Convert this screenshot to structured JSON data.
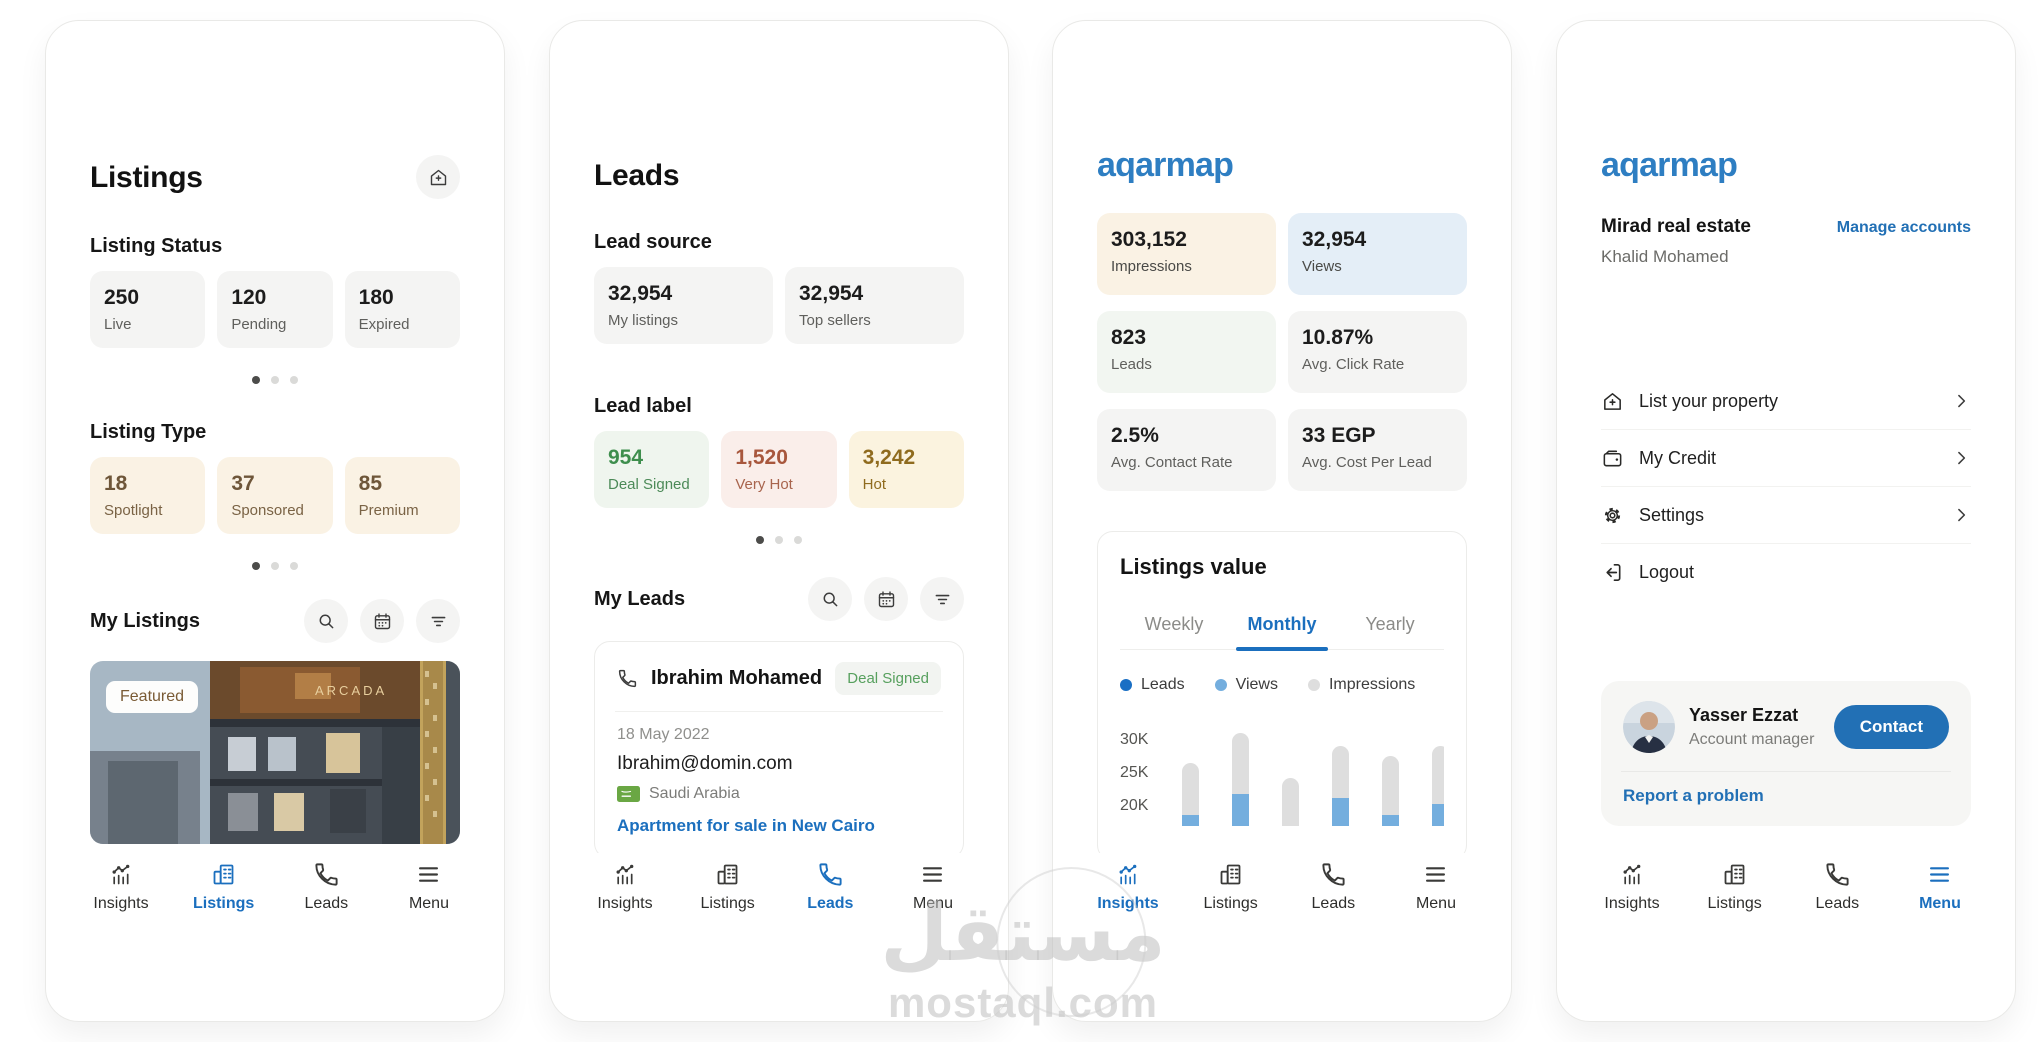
{
  "watermark": {
    "logo_text": "مستقل",
    "domain": "mostaql.com"
  },
  "nav": {
    "items": [
      "Insights",
      "Listings",
      "Leads",
      "Menu"
    ]
  },
  "colors": {
    "accent_blue": "#1b6fbe",
    "logo_blue": "#2e7ec2",
    "contact_blue": "#2270b5",
    "cream_bg": "#faf2e4",
    "cream_text": "#6e5639",
    "green_text": "#3e8e4d",
    "green_bg": "#eff5ee",
    "red_text": "#a8573d",
    "red_bg": "#faeeea",
    "amber_text": "#8f6b1e",
    "amber_bg": "#fbf3df",
    "views_blue_bg": "#e4eef7",
    "neutral_bg": "#f4f4f3"
  },
  "listings_screen": {
    "title": "Listings",
    "status_heading": "Listing Status",
    "status_cards": [
      {
        "value": "250",
        "label": "Live"
      },
      {
        "value": "120",
        "label": "Pending"
      },
      {
        "value": "180",
        "label": "Expired"
      }
    ],
    "type_heading": "Listing Type",
    "type_cards": [
      {
        "value": "18",
        "label": "Spotlight"
      },
      {
        "value": "37",
        "label": "Sponsored"
      },
      {
        "value": "85",
        "label": "Premium"
      }
    ],
    "my_listings_heading": "My Listings",
    "featured_badge": "Featured",
    "active_tab": "Listings"
  },
  "leads_screen": {
    "title": "Leads",
    "source_heading": "Lead source",
    "source_cards": [
      {
        "value": "32,954",
        "label": "My listings"
      },
      {
        "value": "32,954",
        "label": "Top sellers"
      }
    ],
    "label_heading": "Lead label",
    "label_cards": [
      {
        "value": "954",
        "label": "Deal Signed"
      },
      {
        "value": "1,520",
        "label": "Very Hot"
      },
      {
        "value": "3,242",
        "label": "Hot"
      }
    ],
    "my_leads_heading": "My Leads",
    "lead_card": {
      "name": "Ibrahim Mohamed",
      "status_badge": "Deal Signed",
      "date": "18 May 2022",
      "email": "Ibrahim@domin.com",
      "country": "Saudi Arabia",
      "listing_link": "Apartment for sale in New Cairo"
    },
    "active_tab": "Leads"
  },
  "insights_screen": {
    "logo": "aqarmap",
    "stat_cards": [
      {
        "value": "303,152",
        "label": "Impressions",
        "theme": "cream"
      },
      {
        "value": "32,954",
        "label": "Views",
        "theme": "blue"
      },
      {
        "value": "823",
        "label": "Leads",
        "theme": "pale-green"
      },
      {
        "value": "10.87%",
        "label": "Avg. Click Rate",
        "theme": "gray"
      },
      {
        "value": "2.5%",
        "label": "Avg. Contact Rate",
        "theme": "gray"
      },
      {
        "value": "33 EGP",
        "label": "Avg. Cost Per Lead",
        "theme": "gray"
      }
    ],
    "active_tab": "Insights"
  },
  "menu_screen": {
    "logo": "aqarmap",
    "account_name": "Mirad real estate",
    "account_user": "Khalid Mohamed",
    "manage_accounts_link": "Manage accounts",
    "menu_items": [
      {
        "label": "List your property"
      },
      {
        "label": "My Credit"
      },
      {
        "label": "Settings"
      },
      {
        "label": "Logout"
      }
    ],
    "manager_card": {
      "name": "Yasser Ezzat",
      "role": "Account manager",
      "contact_button": "Contact",
      "report_link": "Report a problem"
    },
    "active_tab": "Menu"
  },
  "chart_data": {
    "type": "bar",
    "stacked": true,
    "title": "Listings value",
    "tabs": [
      "Weekly",
      "Monthly",
      "Yearly"
    ],
    "active_tab": "Monthly",
    "legend": [
      {
        "label": "Leads",
        "color": "#1a6fc4"
      },
      {
        "label": "Views",
        "color": "#74aede"
      },
      {
        "label": "Impressions",
        "color": "#dedede"
      }
    ],
    "y_ticks": [
      {
        "label": "30K",
        "value": 30000
      },
      {
        "label": "25K",
        "value": 25000
      },
      {
        "label": "20K",
        "value": 20000
      }
    ],
    "bars": [
      {
        "impressions_top_k": 26.5,
        "views_top_k": 18.6
      },
      {
        "impressions_top_k": 31.0,
        "views_top_k": 21.8
      },
      {
        "impressions_top_k": 24.2,
        "views_top_k": null
      },
      {
        "impressions_top_k": 29.0,
        "views_top_k": 21.2
      },
      {
        "impressions_top_k": 27.5,
        "views_top_k": 18.6
      },
      {
        "impressions_top_k": 29.0,
        "views_top_k": 20.3
      }
    ],
    "note": "bars are cropped at the card bottom; Leads segments fall below the visible crop"
  }
}
